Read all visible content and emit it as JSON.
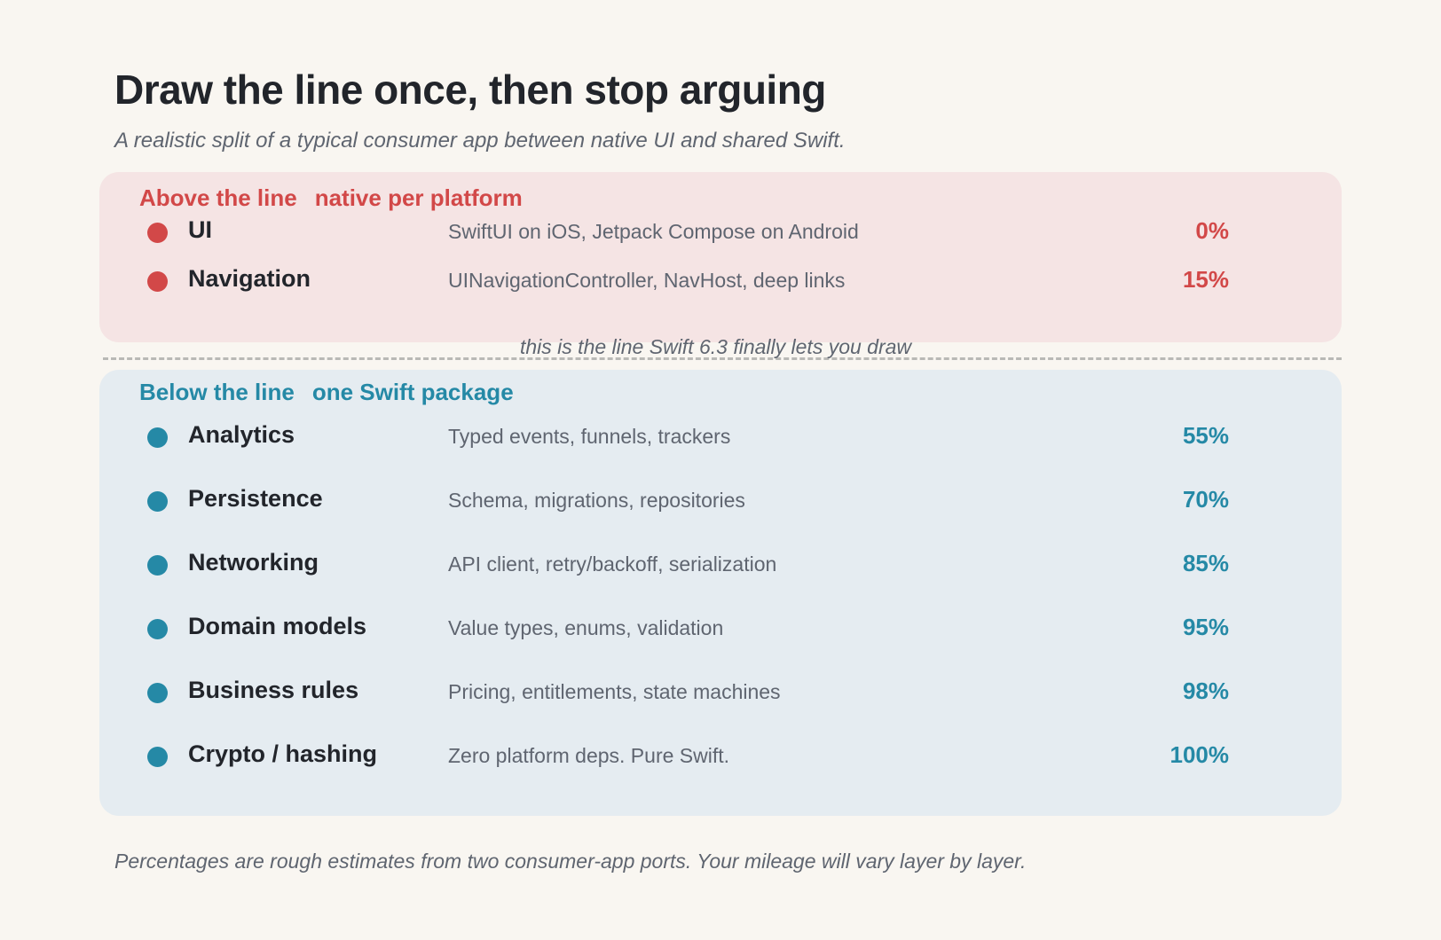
{
  "header": {
    "title": "Draw the line once, then stop arguing",
    "subtitle": "A realistic split of a typical consumer app between native UI and shared Swift."
  },
  "above": {
    "heading": "Above the line",
    "subheading": "native per platform",
    "color": "#d24848",
    "rows": [
      {
        "name": "UI",
        "desc": "SwiftUI on iOS, Jetpack Compose on Android",
        "pct": "0%"
      },
      {
        "name": "Navigation",
        "desc": "UINavigationController, NavHost, deep links",
        "pct": "15%"
      }
    ]
  },
  "divider": {
    "label": "this is the line Swift 6.3 finally lets you draw"
  },
  "below": {
    "heading": "Below the line",
    "subheading": "one Swift package",
    "color": "#2589a6",
    "rows": [
      {
        "name": "Analytics",
        "desc": "Typed events, funnels, trackers",
        "pct": "55%"
      },
      {
        "name": "Persistence",
        "desc": "Schema, migrations, repositories",
        "pct": "70%"
      },
      {
        "name": "Networking",
        "desc": "API client, retry/backoff, serialization",
        "pct": "85%"
      },
      {
        "name": "Domain models",
        "desc": "Value types, enums, validation",
        "pct": "95%"
      },
      {
        "name": "Business rules",
        "desc": "Pricing, entitlements, state machines",
        "pct": "98%"
      },
      {
        "name": "Crypto / hashing",
        "desc": "Zero platform deps. Pure Swift.",
        "pct": "100%"
      }
    ]
  },
  "footnote": "Percentages are rough estimates from two consumer-app ports. Your mileage will vary layer by layer."
}
